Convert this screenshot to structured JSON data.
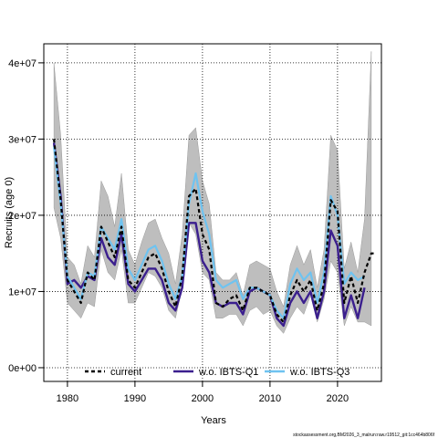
{
  "chart_data": {
    "type": "line",
    "xlabel": "Years",
    "ylabel": "Recruits (age 0)",
    "xlim": [
      1976.5,
      2026.5
    ],
    "ylim": [
      -1800000,
      42500000
    ],
    "x_ticks": [
      1980,
      1990,
      2000,
      2010,
      2020
    ],
    "x_tick_labels": [
      "1980",
      "1990",
      "2000",
      "2010",
      "2020"
    ],
    "y_ticks": [
      0,
      10000000,
      20000000,
      30000000,
      40000000
    ],
    "y_tick_labels": [
      "0e+00",
      "1e+07",
      "2e+07",
      "3e+07",
      "4e+07"
    ],
    "grid": true,
    "legend_position": "bottom",
    "years": [
      1978,
      1979,
      1980,
      1981,
      1982,
      1983,
      1984,
      1985,
      1986,
      1987,
      1988,
      1989,
      1990,
      1991,
      1992,
      1993,
      1994,
      1995,
      1996,
      1997,
      1998,
      1999,
      2000,
      2001,
      2002,
      2003,
      2004,
      2005,
      2006,
      2007,
      2008,
      2009,
      2010,
      2011,
      2012,
      2013,
      2014,
      2015,
      2016,
      2017,
      2018,
      2019,
      2020,
      2021,
      2022,
      2023,
      2024,
      2025
    ],
    "band": {
      "upper": [
        40000000,
        30500000,
        14500000,
        13500000,
        11000000,
        16000000,
        14500000,
        24500000,
        22500000,
        18500000,
        25500000,
        15500000,
        13500000,
        16500000,
        19000000,
        19500000,
        17000000,
        15000000,
        11000000,
        17500000,
        30500000,
        31500000,
        24500000,
        21500000,
        12500000,
        11500000,
        11500000,
        12500000,
        9500000,
        13500000,
        14000000,
        13500000,
        13000000,
        10000000,
        8000000,
        13500000,
        16000000,
        13500000,
        15500000,
        10500000,
        15500000,
        30500000,
        28500000,
        13000000,
        16500000,
        12500000,
        19500000,
        41500000
      ],
      "lower": [
        21000000,
        17000000,
        8500000,
        7500000,
        6500000,
        8500000,
        8000000,
        15500000,
        12500000,
        11500000,
        15500000,
        8500000,
        8500000,
        10500000,
        12500000,
        12000000,
        10500000,
        7500000,
        6500000,
        10500000,
        19000000,
        17500000,
        12500000,
        11500000,
        6500000,
        6500000,
        7000000,
        7000000,
        5500000,
        7500000,
        8000000,
        7000000,
        7500000,
        5500000,
        4500000,
        6500000,
        8000000,
        7000000,
        9500000,
        6000000,
        9000000,
        14000000,
        12500000,
        5500000,
        8000000,
        6000000,
        6000000,
        5500000
      ]
    },
    "series": [
      {
        "name": "current",
        "color": "#000000",
        "style": "dashed",
        "values": [
          30000000,
          22000000,
          11500000,
          10000000,
          8500000,
          12500000,
          11500000,
          18500000,
          16500000,
          14500000,
          18500000,
          11500000,
          10500000,
          12500000,
          14500000,
          15000000,
          13000000,
          10000000,
          8000000,
          12000000,
          22500000,
          23500000,
          17500000,
          15500000,
          8500000,
          8000000,
          9000000,
          9500000,
          7500000,
          10500000,
          10500000,
          10000000,
          9500000,
          7000000,
          6000000,
          9500000,
          11500000,
          10000000,
          11500000,
          7500000,
          11000000,
          22000000,
          20500000,
          8500000,
          12000000,
          8500000,
          12500000,
          15000000
        ],
        "extra_end": {
          "year": 2025.5,
          "value": 15000000
        }
      },
      {
        "name": "w.o. IBTS-Q1",
        "color": "#3b1f8e",
        "style": "solid",
        "values": [
          29500000,
          22500000,
          11000000,
          11500000,
          10500000,
          12000000,
          11500000,
          17000000,
          14500000,
          13500000,
          17500000,
          11000000,
          10000000,
          11500000,
          13000000,
          13000000,
          11500000,
          8500000,
          7500000,
          10500000,
          19000000,
          19000000,
          14000000,
          12500000,
          8500000,
          8000000,
          8500000,
          8500000,
          7000000,
          10000000,
          10500000,
          10000000,
          9500000,
          6500000,
          5500000,
          8500000,
          10000000,
          8500000,
          10000000,
          6500000,
          10000000,
          18000000,
          16000000,
          6500000,
          9500000,
          6500000,
          10500000
        ]
      },
      {
        "name": "w.o. IBTS-Q3",
        "color": "#6fc3f0",
        "style": "solid",
        "values": [
          29000000,
          21500000,
          12000000,
          10500000,
          9000000,
          12500000,
          12000000,
          18500000,
          17000000,
          15500000,
          19500000,
          13000000,
          11500000,
          13500000,
          15500000,
          16000000,
          14000000,
          11000000,
          9000000,
          12000000,
          21500000,
          25500000,
          20500000,
          17500000,
          11500000,
          10500000,
          11000000,
          11500000,
          9000000,
          10500000,
          10500000,
          10000000,
          9500000,
          7500000,
          6500000,
          11000000,
          13000000,
          11500000,
          12500000,
          8500000,
          12500000,
          22500000,
          20000000,
          11000000,
          12500000,
          11500000,
          12000000
        ]
      }
    ]
  },
  "footer": "stockassessment.org,BM2026_3_malrun:raw.r19512_git:1cc464b806f"
}
